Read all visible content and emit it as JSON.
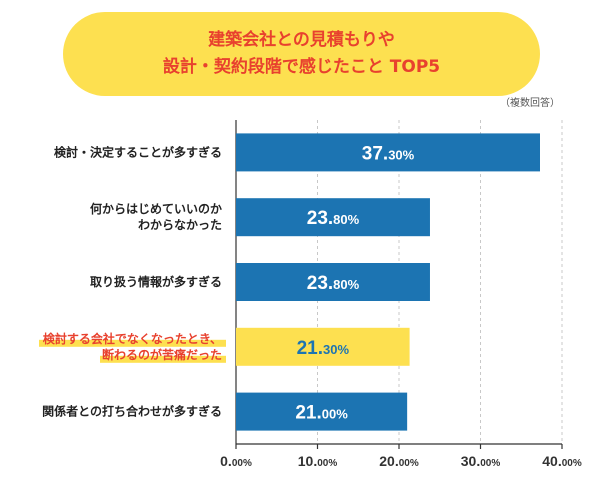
{
  "chart_data": {
    "type": "bar",
    "orientation": "horizontal",
    "title": [
      "建築会社との見積もりや",
      "設計・契約段階で感じたこと TOP5"
    ],
    "note": "（複数回答）",
    "categories": [
      [
        "検討・決定することが多すぎる"
      ],
      [
        "何からはじめていいのか",
        "わからなかった"
      ],
      [
        "取り扱う情報が多すぎる"
      ],
      [
        "検討する会社でなくなったとき、",
        "断わるのが苦痛だった"
      ],
      [
        "関係者との打ち合わせが多すぎる"
      ]
    ],
    "values": [
      37.3,
      23.8,
      23.8,
      21.3,
      21.0
    ],
    "value_labels": [
      [
        "37.",
        "30%"
      ],
      [
        "23.",
        "80%"
      ],
      [
        "23.",
        "80%"
      ],
      [
        "21.",
        "30%"
      ],
      [
        "21.",
        "00%"
      ]
    ],
    "highlight_index": 3,
    "xlim": [
      0,
      40
    ],
    "x_ticks": [
      [
        "0.",
        "00%"
      ],
      [
        "10.",
        "00%"
      ],
      [
        "20.",
        "00%"
      ],
      [
        "30.",
        "00%"
      ],
      [
        "40.",
        "00%"
      ]
    ],
    "grid": true,
    "colors": {
      "bar": "#1c74b2",
      "bar_highlight": "#fde050",
      "value_text": "#ffffff",
      "value_text_highlight": "#1c74b2",
      "label_text": "#222222",
      "label_text_highlight": "#e8412e",
      "label_marker_highlight": "#fde050",
      "title_text": "#e8412e",
      "title_bg": "#fde050",
      "grid": "#c8c8c8",
      "axis": "#333333"
    }
  }
}
